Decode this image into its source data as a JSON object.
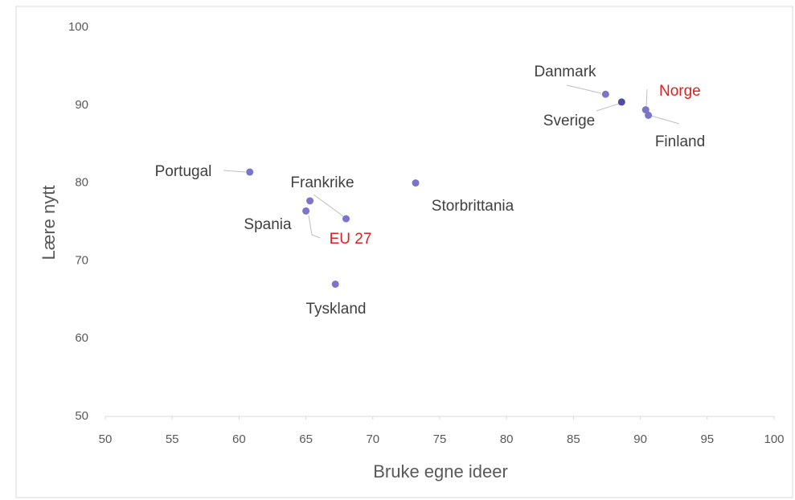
{
  "chart_data": {
    "type": "scatter",
    "xlabel": "Bruke egne ideer",
    "ylabel": "Lære nytt",
    "xlim": [
      50,
      100
    ],
    "xticks": [
      50,
      55,
      60,
      65,
      70,
      75,
      80,
      85,
      90,
      95,
      100
    ],
    "ylim": [
      50,
      100
    ],
    "yticks": [
      50,
      60,
      70,
      80,
      90,
      100
    ],
    "grid": false,
    "series": [
      {
        "color": "#7b74c9",
        "labels": [
          "Danmark",
          "Sverige",
          "Norge",
          "Finland",
          "Portugal",
          "Storbrittania",
          "Frankrike",
          "Spania",
          "EU 27",
          "Tyskland"
        ],
        "x": [
          87.4,
          88.6,
          90.4,
          90.6,
          60.8,
          73.2,
          65.3,
          65.0,
          68.0,
          67.2
        ],
        "values": [
          91.4,
          90.4,
          89.4,
          88.7,
          81.4,
          80.0,
          77.7,
          76.4,
          75.4,
          67.0
        ],
        "point_colors": [
          "#7b74c9",
          "#4f4a9e",
          "#7b74c9",
          "#7b74c9",
          "#7b74c9",
          "#7b74c9",
          "#7b74c9",
          "#7b74c9",
          "#7b74c9",
          "#7b74c9"
        ],
        "label_colors": [
          "#404040",
          "#404040",
          "#e02020",
          "#404040",
          "#404040",
          "#404040",
          "#404040",
          "#404040",
          "#e02020",
          "#404040"
        ]
      }
    ]
  }
}
